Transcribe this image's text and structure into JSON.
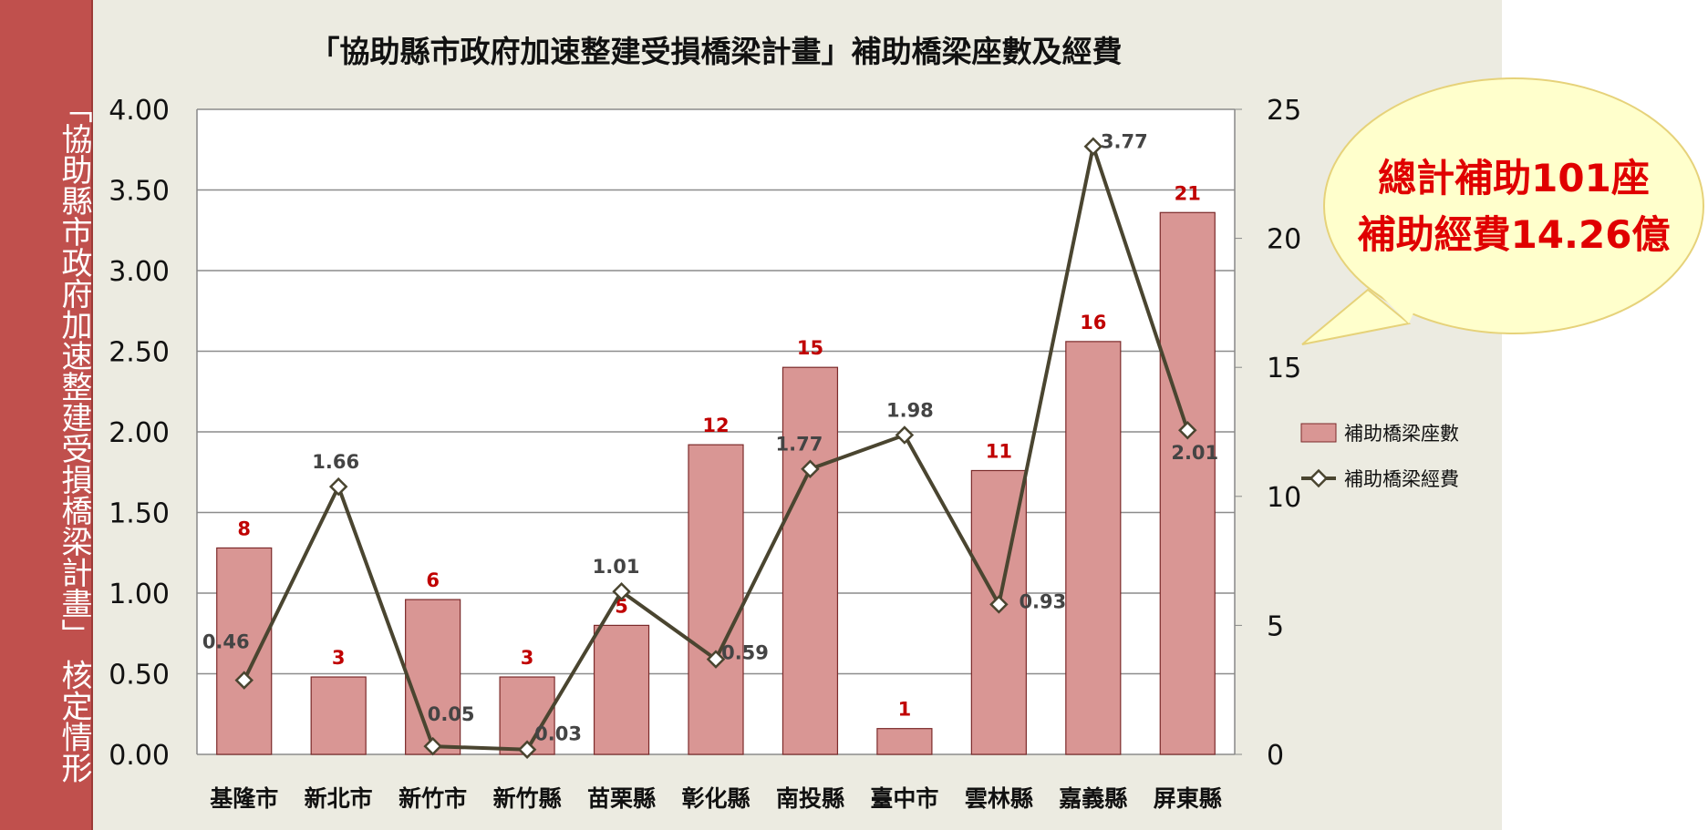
{
  "sidebar": {
    "text": "「協助縣市政府加速整建受損橋梁計畫」 核定情形"
  },
  "callout": {
    "line1": "總計補助101座",
    "line2": "補助經費14.26億"
  },
  "colors": {
    "bar": "#d99694",
    "bar_border": "#7b2a2a",
    "line": "#4a4530",
    "sidebar": "#c0504d",
    "bar_label": "#c00000",
    "callout_text": "#e00000",
    "callout_fill": "#ffffcc"
  },
  "chart_data": {
    "type": "bar+line",
    "title": "「協助縣市政府加速整建受損橋梁計畫」補助橋梁座數及經費",
    "categories": [
      "基隆市",
      "新北市",
      "新竹市",
      "新竹縣",
      "苗栗縣",
      "彰化縣",
      "南投縣",
      "臺中市",
      "雲林縣",
      "嘉義縣",
      "屏東縣"
    ],
    "series": [
      {
        "name": "補助橋梁座數",
        "type": "bar",
        "axis": "right",
        "values": [
          8,
          3,
          6,
          3,
          5,
          12,
          15,
          1,
          11,
          16,
          21
        ]
      },
      {
        "name": "補助橋梁經費",
        "type": "line",
        "axis": "left",
        "values": [
          0.46,
          1.66,
          0.05,
          0.03,
          1.01,
          0.59,
          1.77,
          1.98,
          0.93,
          3.77,
          2.01
        ]
      }
    ],
    "left_axis": {
      "ylim": [
        0,
        4
      ],
      "ticks": [
        "0.00",
        "0.50",
        "1.00",
        "1.50",
        "2.00",
        "2.50",
        "3.00",
        "3.50",
        "4.00"
      ]
    },
    "right_axis": {
      "ylim": [
        0,
        25
      ],
      "ticks": [
        "0",
        "5",
        "10",
        "15",
        "20",
        "25"
      ]
    },
    "grid": true,
    "legend": "right"
  }
}
